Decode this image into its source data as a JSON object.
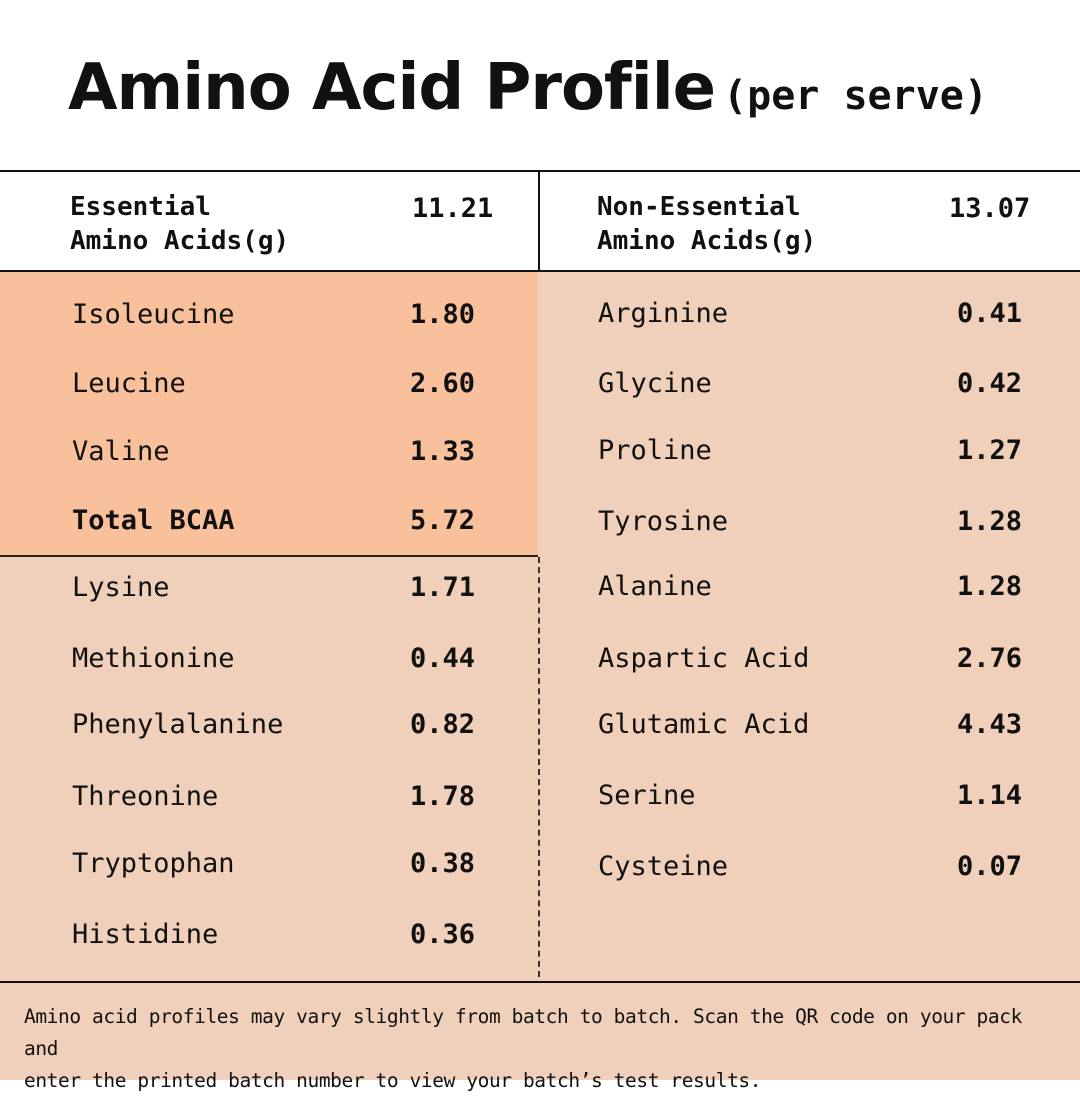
{
  "title": {
    "main": "Amino Acid Profile",
    "sub": "(per serve)"
  },
  "essential": {
    "label": "Essential\nAmino Acids(g)",
    "total": "11.21",
    "bcaa_rows": [
      {
        "name": "Isoleucine",
        "value": "1.80"
      },
      {
        "name": "Leucine",
        "value": "2.60"
      },
      {
        "name": "Valine",
        "value": "1.33"
      },
      {
        "name": "Total BCAA",
        "value": "5.72"
      }
    ],
    "other_rows": [
      {
        "name": "Lysine",
        "value": "1.71"
      },
      {
        "name": "Methionine",
        "value": "0.44"
      },
      {
        "name": "Phenylalanine",
        "value": "0.82"
      },
      {
        "name": "Threonine",
        "value": "1.78"
      },
      {
        "name": "Tryptophan",
        "value": "0.38"
      },
      {
        "name": "Histidine",
        "value": "0.36"
      }
    ]
  },
  "non_essential": {
    "label": "Non-Essential\nAmino Acids(g)",
    "total": "13.07",
    "rows": [
      {
        "name": "Arginine",
        "value": "0.41"
      },
      {
        "name": "Glycine",
        "value": "0.42"
      },
      {
        "name": "Proline",
        "value": "1.27"
      },
      {
        "name": "Tyrosine",
        "value": "1.28"
      },
      {
        "name": "Alanine",
        "value": "1.28"
      },
      {
        "name": "Aspartic Acid",
        "value": "2.76"
      },
      {
        "name": "Glutamic Acid",
        "value": "4.43"
      },
      {
        "name": "Serine",
        "value": "1.14"
      },
      {
        "name": "Cysteine",
        "value": "0.07"
      }
    ]
  },
  "footer": {
    "note": "Amino acid profiles may vary slightly from batch to batch. Scan the QR code on your pack and\nenter the printed batch number to view your batch’s test results."
  },
  "colors": {
    "background": "#ffffff",
    "table_background": "#f0d0bb",
    "bcaa_highlight": "#f9c09c",
    "text": "#111111"
  }
}
